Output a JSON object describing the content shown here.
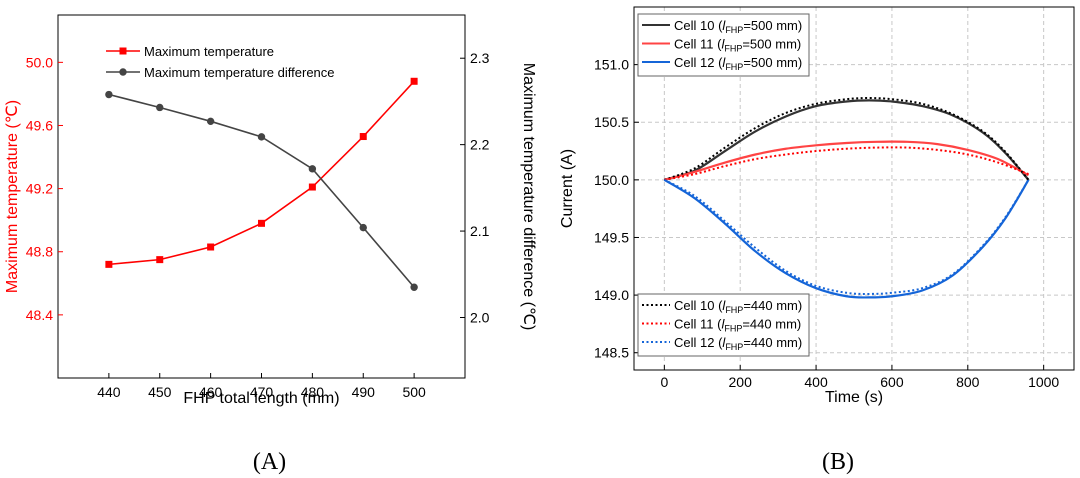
{
  "chart_data": [
    {
      "type": "line",
      "panel_label": "(A)",
      "xlabel": "FHP total length (mm)",
      "x": [
        440,
        450,
        460,
        470,
        480,
        490,
        500
      ],
      "xlim": [
        430,
        510
      ],
      "xticks": [
        440,
        450,
        460,
        470,
        480,
        490,
        500
      ],
      "ylabel_left": "Maximum temperature (℃)",
      "ylim_left": [
        48.0,
        50.3
      ],
      "yticks_left": [
        48.4,
        48.8,
        49.2,
        49.6,
        50.0
      ],
      "ytick_labels_left": [
        "48.4",
        "48.8",
        "49.2",
        "49.6",
        "50.0"
      ],
      "ylabel_right": "Maximum temperature difference (℃)",
      "ylim_right": [
        1.93,
        2.35
      ],
      "yticks_right": [
        2.0,
        2.1,
        2.2,
        2.3
      ],
      "ytick_labels_right": [
        "2.0",
        "2.1",
        "2.2",
        "2.3"
      ],
      "left_axis_color": "#ff0000",
      "right_axis_color": "#000000",
      "legend_position": "top-left",
      "series": [
        {
          "name": "Maximum temperature",
          "axis": "left",
          "color": "#ff0000",
          "marker": "square",
          "values": [
            48.72,
            48.75,
            48.83,
            48.98,
            49.21,
            49.53,
            49.88
          ]
        },
        {
          "name": "Maximum temperature difference",
          "axis": "right",
          "color": "#444444",
          "marker": "circle",
          "values": [
            2.258,
            2.243,
            2.227,
            2.209,
            2.172,
            2.104,
            2.035
          ]
        }
      ]
    },
    {
      "type": "line",
      "panel_label": "(B)",
      "xlabel": "Time (s)",
      "ylabel": "Current (A)",
      "xlim": [
        -80,
        1080
      ],
      "xticks": [
        0,
        200,
        400,
        600,
        800,
        1000
      ],
      "ylim": [
        148.35,
        151.5
      ],
      "yticks": [
        148.5,
        149.0,
        149.5,
        150.0,
        150.5,
        151.0
      ],
      "ytick_labels": [
        "148.5",
        "149.0",
        "149.5",
        "150.0",
        "150.5",
        "151.0"
      ],
      "grid": true,
      "legend_positions": [
        "top-left",
        "bottom-left"
      ],
      "series": [
        {
          "name": "Cell 10 (lFHP=500 mm)",
          "label_main": "Cell 10 (",
          "label_ital": "l",
          "label_sub": "FHP",
          "label_rest": "=500 mm)",
          "color": "#333333",
          "dash": "solid",
          "x": [
            0,
            80,
            160,
            240,
            320,
            400,
            480,
            540,
            600,
            680,
            760,
            840,
            900,
            960
          ],
          "y": [
            150.0,
            150.08,
            150.25,
            150.42,
            150.55,
            150.64,
            150.68,
            150.69,
            150.68,
            150.64,
            150.56,
            150.41,
            150.23,
            150.0
          ]
        },
        {
          "name": "Cell 11 (lFHP=500 mm)",
          "label_main": "Cell 11 (",
          "label_ital": "l",
          "label_sub": "FHP",
          "label_rest": "=500 mm)",
          "color": "#ff4444",
          "dash": "solid",
          "x": [
            0,
            80,
            160,
            240,
            320,
            400,
            480,
            560,
            640,
            720,
            800,
            880,
            960
          ],
          "y": [
            150.0,
            150.07,
            150.15,
            150.22,
            150.27,
            150.3,
            150.32,
            150.33,
            150.33,
            150.31,
            150.26,
            150.18,
            150.04
          ]
        },
        {
          "name": "Cell 12 (lFHP=500 mm)",
          "label_main": "Cell 12 (",
          "label_ital": "l",
          "label_sub": "FHP",
          "label_rest": "=500 mm)",
          "color": "#1565d8",
          "dash": "solid",
          "x": [
            0,
            80,
            160,
            240,
            320,
            400,
            480,
            540,
            600,
            680,
            760,
            840,
            900,
            960
          ],
          "y": [
            150.0,
            149.84,
            149.62,
            149.38,
            149.19,
            149.06,
            148.99,
            148.98,
            148.99,
            149.04,
            149.17,
            149.42,
            149.67,
            150.0
          ]
        },
        {
          "name": "Cell 10 (lFHP=440 mm)",
          "label_main": "Cell 10 (",
          "label_ital": "l",
          "label_sub": "FHP",
          "label_rest": "=440 mm)",
          "color": "#000000",
          "dash": "dotted",
          "x": [
            0,
            80,
            160,
            240,
            320,
            400,
            480,
            540,
            600,
            680,
            760,
            840,
            900,
            960
          ],
          "y": [
            150.0,
            150.1,
            150.28,
            150.45,
            150.58,
            150.66,
            150.7,
            150.71,
            150.7,
            150.66,
            150.57,
            150.42,
            150.24,
            150.0
          ]
        },
        {
          "name": "Cell 11 (lFHP=440 mm)",
          "label_main": "Cell 11 (",
          "label_ital": "l",
          "label_sub": "FHP",
          "label_rest": "=440 mm)",
          "color": "#ff0000",
          "dash": "dotted",
          "x": [
            0,
            80,
            160,
            240,
            320,
            400,
            480,
            560,
            640,
            720,
            800,
            880,
            960
          ],
          "y": [
            150.0,
            150.05,
            150.12,
            150.18,
            150.22,
            150.25,
            150.27,
            150.28,
            150.28,
            150.26,
            150.22,
            150.15,
            150.05
          ]
        },
        {
          "name": "Cell 12 (lFHP=440 mm)",
          "label_main": "Cell 12 (",
          "label_ital": "l",
          "label_sub": "FHP",
          "label_rest": "=440 mm)",
          "color": "#1565d8",
          "dash": "dotted",
          "x": [
            0,
            80,
            160,
            240,
            320,
            400,
            480,
            540,
            600,
            680,
            760,
            840,
            900,
            960
          ],
          "y": [
            150.0,
            149.86,
            149.64,
            149.41,
            149.21,
            149.08,
            149.02,
            149.01,
            149.02,
            149.06,
            149.18,
            149.43,
            149.68,
            150.0
          ]
        }
      ]
    }
  ]
}
